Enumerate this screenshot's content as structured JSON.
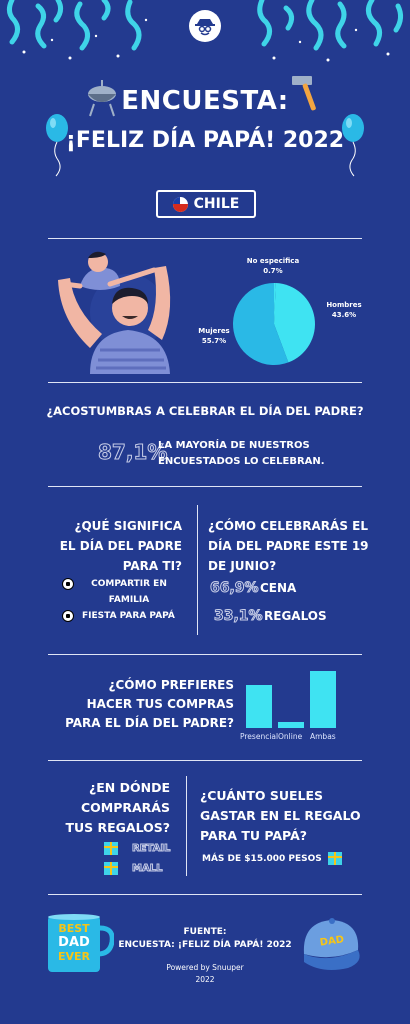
{
  "header": {
    "title_line1": "ENCUESTA:",
    "title_line2": "¡FELIZ DÍA PAPÁ! 2022",
    "country": "CHILE"
  },
  "gender": {
    "slices": [
      {
        "label": "No especifica",
        "value": 0.7,
        "value_text": "0.7%",
        "color": "#3fe3f2"
      },
      {
        "label": "Hombres",
        "value": 43.6,
        "value_text": "43.6%",
        "color": "#3fe3f2"
      },
      {
        "label": "Mujeres",
        "value": 55.7,
        "value_text": "55.7%",
        "color": "#2ab9e6"
      }
    ]
  },
  "celebrate": {
    "question": "¿ACOSTUMBRAS A CELEBRAR EL DÍA DEL PADRE?",
    "percent": "87,1%",
    "line1": "LA MAYORÍA DE NUESTROS",
    "line2": "ENCUESTADOS LO CELEBRAN."
  },
  "meaning": {
    "q1": "¿QUÉ SIGNIFICA",
    "q2": "EL DÍA DEL PADRE",
    "q3": "PARA TI?",
    "opt1a": "COMPARTIR EN",
    "opt1b": "FAMILIA",
    "opt2": "FIESTA PARA PAPÁ"
  },
  "how_celebrate": {
    "q1": "¿CÓMO CELEBRARÁS EL",
    "q2": "DÍA DEL PADRE ESTE 19",
    "q3": "DE JUNIO?",
    "items": [
      {
        "percent": "66,9%",
        "label": "CENA"
      },
      {
        "percent": "33,1%",
        "label": "REGALOS"
      }
    ]
  },
  "shopping": {
    "q1": "¿CÓMO PREFIERES",
    "q2": "HACER TUS COMPRAS",
    "q3": "PARA EL DÍA DEL PADRE?",
    "chart_data": {
      "type": "bar",
      "categories": [
        "Presencial",
        "Online",
        "Ambas"
      ],
      "values": [
        38,
        5,
        51
      ],
      "ylim": [
        0,
        55
      ]
    }
  },
  "where": {
    "q1": "¿EN DÓNDE",
    "q2": "COMPRARÁS",
    "q3": "TUS REGALOS?",
    "opt1": "RETAIL",
    "opt2": "MALL"
  },
  "spend": {
    "q1": "¿CUÁNTO SUELES",
    "q2": "GASTAR EN EL REGALO",
    "q3": "PARA TU PAPÁ?",
    "answer": "MÁS DE $15.000 PESOS"
  },
  "footer": {
    "fuente": "FUENTE:",
    "source": "ENCUESTA: ¡FELIZ DÍA PAPÁ! 2022",
    "powered": "Powered by Snuuper",
    "year": "2022",
    "mug_line1": "BEST",
    "mug_line2": "DAD",
    "mug_line3": "EVER",
    "cap_text": "DAD"
  }
}
